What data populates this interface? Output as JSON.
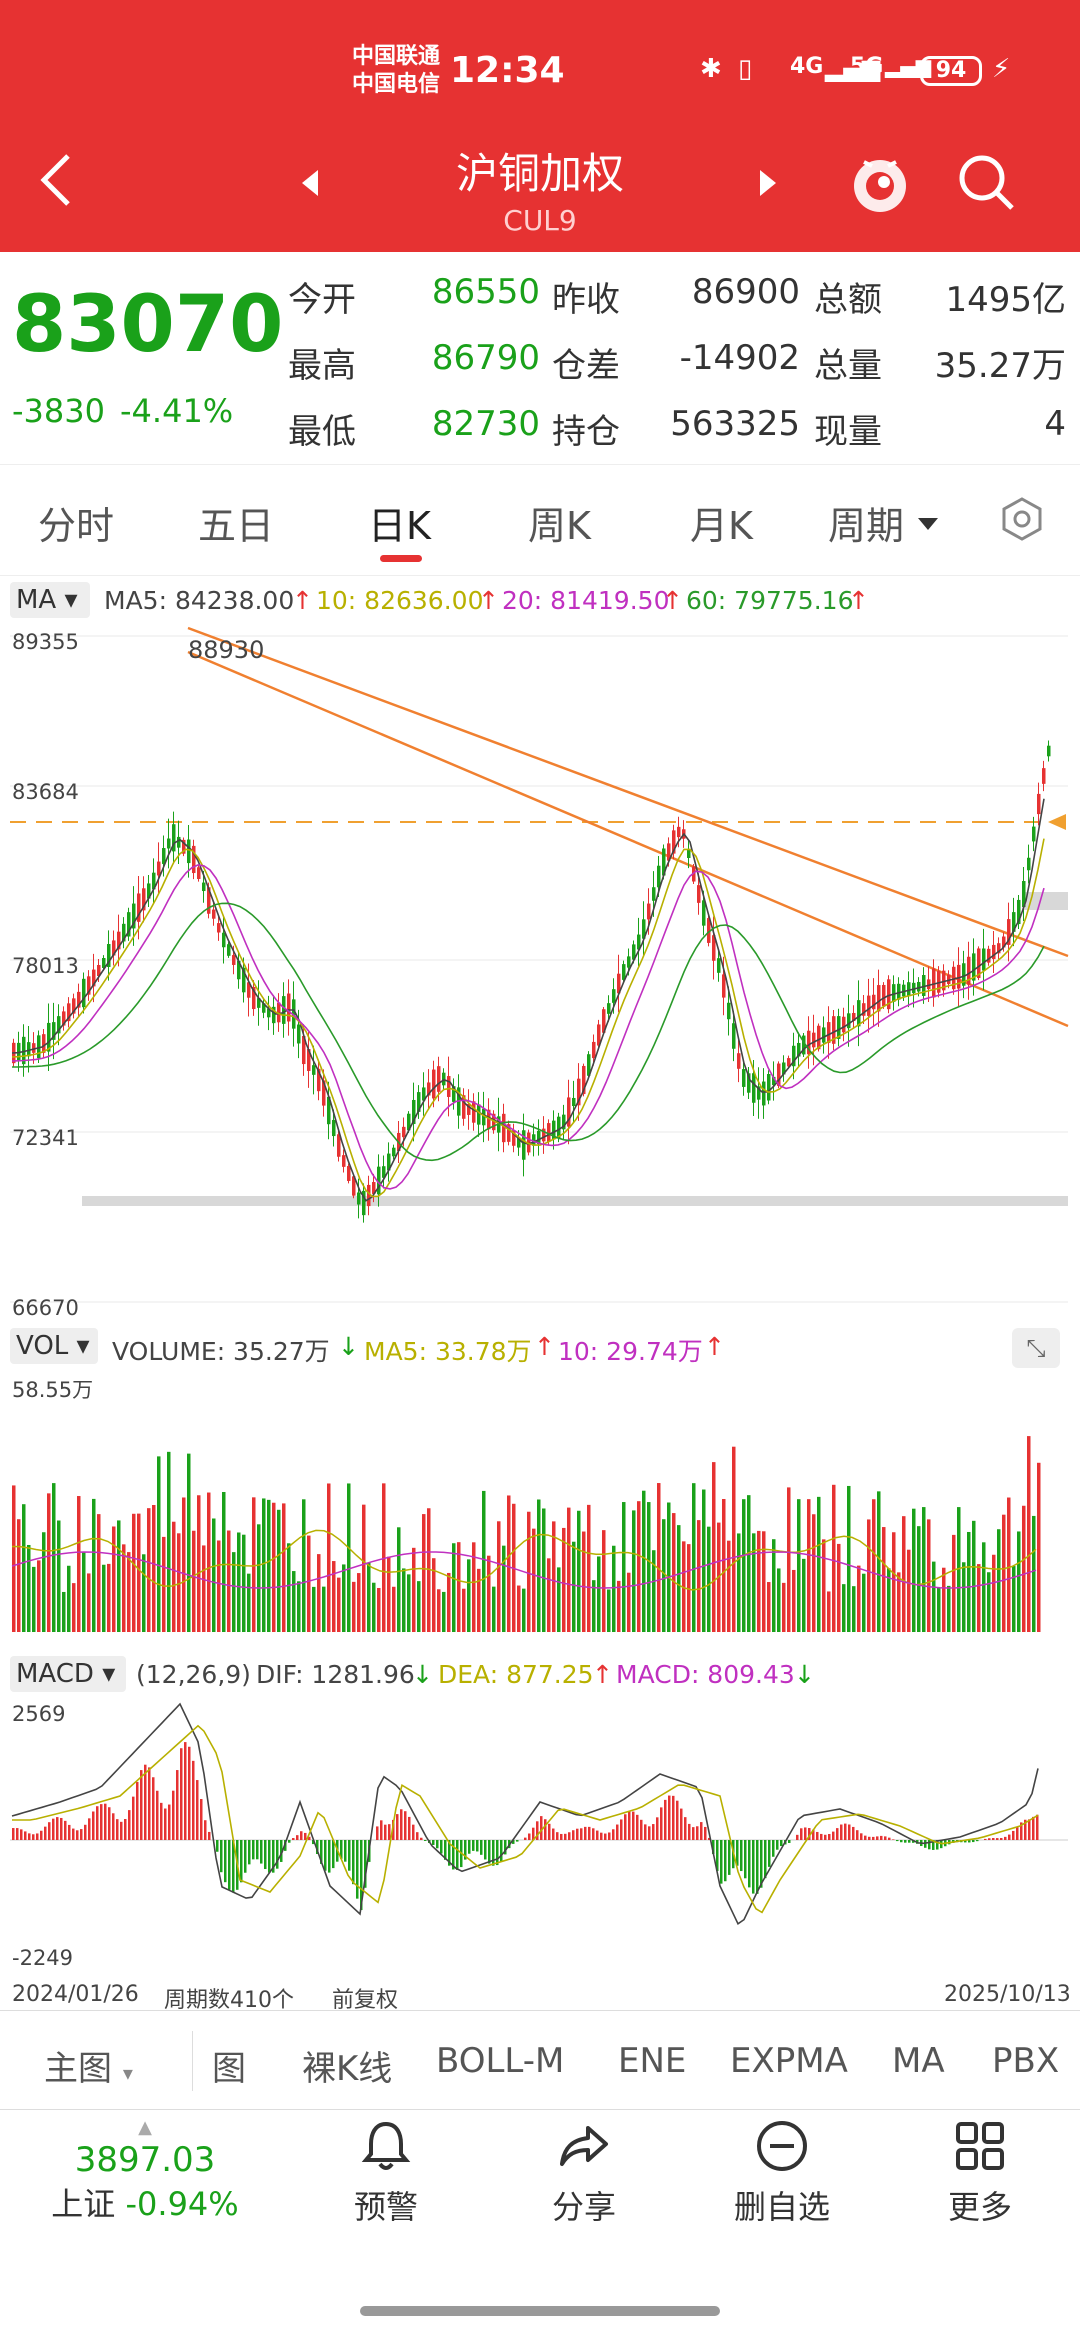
{
  "status_bar": {
    "carrier1": "中国联通",
    "carrier2": "中国电信",
    "time": "12:34",
    "network1": "4G",
    "network2": "5G",
    "battery": "94"
  },
  "nav": {
    "title": "沪铜加权",
    "subtitle": "CUL9"
  },
  "quote": {
    "price": "83070",
    "change": "-3830",
    "change_pct": "-4.41%",
    "open_label": "今开",
    "open": "86550",
    "prev_close_label": "昨收",
    "prev_close": "86900",
    "amount_label": "总额",
    "amount": "1495亿",
    "high_label": "最高",
    "high": "86790",
    "oi_diff_label": "仓差",
    "oi_diff": "-14902",
    "volume_label": "总量",
    "volume": "35.27万",
    "low_label": "最低",
    "low": "82730",
    "oi_label": "持仓",
    "oi": "563325",
    "current_label": "现量",
    "current": "4"
  },
  "tabs": [
    "分时",
    "五日",
    "日K",
    "周K",
    "月K",
    "周期"
  ],
  "ma_bar": {
    "chip": "MA",
    "ma5": "MA5: 84238.00",
    "ma10": "10: 82636.00",
    "ma20": "20: 81419.50",
    "ma60": "60: 79775.16"
  },
  "price_axis": [
    "89355",
    "83684",
    "78013",
    "72341",
    "66670"
  ],
  "peak_label": "88930",
  "vol_bar": {
    "chip": "VOL",
    "volume": "VOLUME: 35.27万",
    "ma5": "MA5: 33.78万",
    "ma10": "10: 29.74万"
  },
  "vol_axis": "58.55万",
  "macd_bar": {
    "chip": "MACD",
    "params": "(12,26,9)",
    "dif": "DIF: 1281.96",
    "dea": "DEA: 877.25",
    "macd": "MACD: 809.43"
  },
  "macd_axis": [
    "2569",
    "-2249"
  ],
  "date_row": {
    "start": "2024/01/26",
    "count": "周期数410个",
    "adjust": "前复权",
    "end": "2025/10/13"
  },
  "bottom_tabs": [
    "主图",
    "图",
    "裸K线",
    "BOLL-M",
    "ENE",
    "EXPMA",
    "MA",
    "PBX"
  ],
  "footer": {
    "index_value": "3897.03",
    "index_name": "上证",
    "index_change": "-0.94%",
    "alert": "预警",
    "share": "分享",
    "remove": "删自选",
    "more": "更多"
  },
  "colors": {
    "header": "#e63232",
    "up": "#e63232",
    "down": "#1aa11a",
    "ma5": "#444444",
    "ma10": "#b8b000",
    "ma20": "#c030c0",
    "ma60": "#2a9a2a",
    "trendline": "#f08030"
  },
  "chart_data": {
    "type": "candlestick",
    "ylim": [
      66670,
      89355
    ],
    "last_close": 83070,
    "period_count": 410
  }
}
